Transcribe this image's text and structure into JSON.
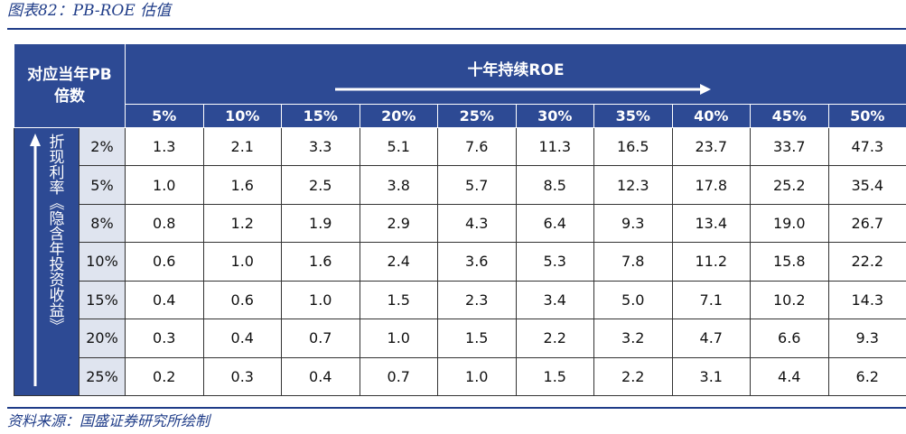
{
  "title": "图表82：PB-ROE 估值",
  "table": {
    "corner": "对应当年PB倍数",
    "column_group": "十年持续ROE",
    "row_group": "折现利率︽隐含年投资收益︾",
    "columns": [
      "5%",
      "10%",
      "15%",
      "20%",
      "25%",
      "30%",
      "35%",
      "40%",
      "45%",
      "50%"
    ],
    "rows": [
      {
        "label": "2%",
        "values": [
          "1.3",
          "2.1",
          "3.3",
          "5.1",
          "7.6",
          "11.3",
          "16.5",
          "23.7",
          "33.7",
          "47.3"
        ]
      },
      {
        "label": "5%",
        "values": [
          "1.0",
          "1.6",
          "2.5",
          "3.8",
          "5.7",
          "8.5",
          "12.3",
          "17.8",
          "25.2",
          "35.4"
        ]
      },
      {
        "label": "8%",
        "values": [
          "0.8",
          "1.2",
          "1.9",
          "2.9",
          "4.3",
          "6.4",
          "9.3",
          "13.4",
          "19.0",
          "26.7"
        ]
      },
      {
        "label": "10%",
        "values": [
          "0.6",
          "1.0",
          "1.6",
          "2.4",
          "3.6",
          "5.3",
          "7.8",
          "11.2",
          "15.8",
          "22.2"
        ]
      },
      {
        "label": "15%",
        "values": [
          "0.4",
          "0.6",
          "1.0",
          "1.5",
          "2.3",
          "3.4",
          "5.0",
          "7.1",
          "10.2",
          "14.3"
        ]
      },
      {
        "label": "20%",
        "values": [
          "0.3",
          "0.4",
          "0.7",
          "1.0",
          "1.5",
          "2.2",
          "3.2",
          "4.7",
          "6.6",
          "9.3"
        ]
      },
      {
        "label": "25%",
        "values": [
          "0.2",
          "0.3",
          "0.4",
          "0.7",
          "1.0",
          "1.5",
          "2.2",
          "3.1",
          "4.4",
          "6.2"
        ]
      }
    ]
  },
  "source": "资料来源：国盛证券研究所绘制"
}
